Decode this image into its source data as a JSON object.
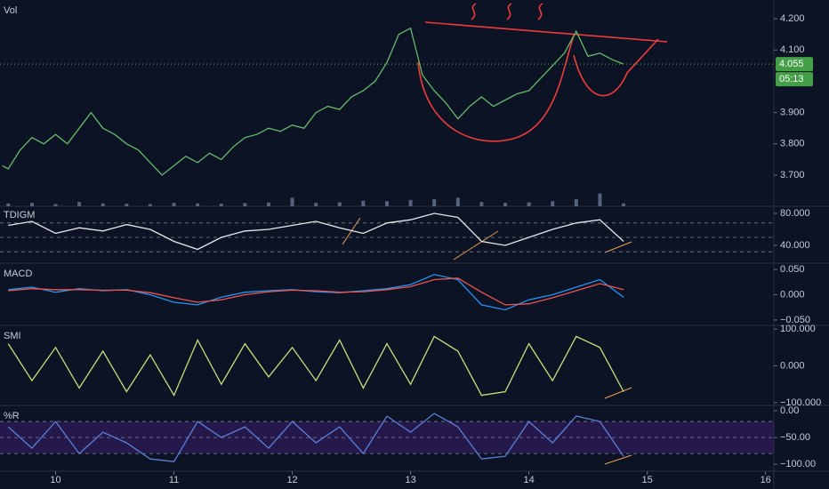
{
  "charts": [
    {
      "type": "line",
      "xlim": [
        9.53,
        16.07
      ],
      "ylim": [
        3.606,
        4.26
      ],
      "x": [
        9.55,
        9.6,
        9.7,
        9.8,
        9.9,
        10.0,
        10.1,
        10.2,
        10.3,
        10.4,
        10.5,
        10.6,
        10.7,
        10.8,
        10.9,
        11.0,
        11.1,
        11.2,
        11.3,
        11.4,
        11.5,
        11.6,
        11.7,
        11.8,
        11.9,
        12.0,
        12.1,
        12.2,
        12.3,
        12.4,
        12.5,
        12.6,
        12.7,
        12.8,
        12.9,
        13.0,
        13.1,
        13.2,
        13.3,
        13.4,
        13.5,
        13.6,
        13.7,
        13.8,
        13.9,
        14.0,
        14.1,
        14.2,
        14.3,
        14.4,
        14.5,
        14.6,
        14.7,
        14.8
      ],
      "series": [
        {
          "color": "#66bb6a",
          "values": [
            3.73,
            3.72,
            3.78,
            3.82,
            3.8,
            3.83,
            3.8,
            3.85,
            3.9,
            3.85,
            3.83,
            3.8,
            3.78,
            3.74,
            3.7,
            3.73,
            3.76,
            3.74,
            3.77,
            3.75,
            3.79,
            3.82,
            3.83,
            3.85,
            3.84,
            3.86,
            3.85,
            3.9,
            3.92,
            3.91,
            3.95,
            3.97,
            4.0,
            4.06,
            4.15,
            4.17,
            4.02,
            3.97,
            3.93,
            3.88,
            3.92,
            3.95,
            3.92,
            3.94,
            3.96,
            3.97,
            4.01,
            4.05,
            4.09,
            4.16,
            4.08,
            4.09,
            4.07,
            4.055
          ]
        }
      ],
      "yticks": [
        {
          "value": 4.2,
          "label": "4.200"
        },
        {
          "value": 4.1,
          "label": "4.100"
        },
        {
          "value": 3.9,
          "label": "3.900"
        },
        {
          "value": 3.8,
          "label": "3.800"
        },
        {
          "value": 3.7,
          "label": "3.700"
        }
      ],
      "price_label": {
        "value": 4.055,
        "label": "4.055"
      },
      "countdown": "05:13"
    },
    {
      "type": "bar",
      "title": "Vol",
      "xlim": [
        9.53,
        16.07
      ],
      "ylim": [
        0,
        100
      ],
      "color": "#56627e",
      "x": [
        9.6,
        9.8,
        10.0,
        10.2,
        10.4,
        10.6,
        10.8,
        11.0,
        11.2,
        11.4,
        11.6,
        11.8,
        12.0,
        12.2,
        12.4,
        12.6,
        12.8,
        13.0,
        13.2,
        13.4,
        13.6,
        13.8,
        14.0,
        14.2,
        14.4,
        14.6,
        14.8
      ],
      "values": [
        10,
        12,
        8,
        15,
        10,
        9,
        8,
        12,
        10,
        9,
        11,
        13,
        30,
        12,
        14,
        20,
        18,
        22,
        25,
        30,
        15,
        12,
        14,
        18,
        25,
        45,
        10
      ]
    },
    {
      "type": "line",
      "title": "TDIGM",
      "xlim": [
        9.53,
        16.07
      ],
      "ylim": [
        18.9,
        88.9
      ],
      "x": [
        9.6,
        9.8,
        10.0,
        10.2,
        10.4,
        10.6,
        10.8,
        11.0,
        11.2,
        11.4,
        11.6,
        11.8,
        12.0,
        12.2,
        12.4,
        12.6,
        12.8,
        13.0,
        13.2,
        13.4,
        13.6,
        13.8,
        14.0,
        14.2,
        14.4,
        14.6,
        14.8
      ],
      "series": [
        {
          "color": "#e8e8e8",
          "values": [
            65,
            70,
            55,
            62,
            58,
            66,
            60,
            45,
            35,
            50,
            58,
            60,
            65,
            70,
            62,
            55,
            68,
            72,
            80,
            75,
            45,
            40,
            50,
            60,
            68,
            72,
            45
          ]
        }
      ],
      "levels": [
        68,
        50,
        32
      ],
      "yticks": [
        {
          "value": 80,
          "label": "80.000"
        },
        {
          "value": 40,
          "label": "40.000"
        }
      ]
    },
    {
      "type": "line",
      "title": "MACD",
      "xlim": [
        9.53,
        16.07
      ],
      "ylim": [
        -0.059,
        0.059
      ],
      "x": [
        9.6,
        9.8,
        10.0,
        10.2,
        10.4,
        10.6,
        10.8,
        11.0,
        11.2,
        11.4,
        11.6,
        11.8,
        12.0,
        12.2,
        12.4,
        12.6,
        12.8,
        13.0,
        13.2,
        13.4,
        13.6,
        13.8,
        14.0,
        14.2,
        14.4,
        14.6,
        14.8
      ],
      "series": [
        {
          "color": "#2196f3",
          "values": [
            0.01,
            0.015,
            0.005,
            0.012,
            0.008,
            0.01,
            0.0,
            -0.015,
            -0.02,
            -0.005,
            0.005,
            0.008,
            0.01,
            0.006,
            0.004,
            0.008,
            0.012,
            0.02,
            0.04,
            0.03,
            -0.02,
            -0.03,
            -0.01,
            0.0,
            0.015,
            0.03,
            -0.005
          ]
        },
        {
          "color": "#ef5350",
          "values": [
            0.008,
            0.012,
            0.01,
            0.01,
            0.009,
            0.009,
            0.004,
            -0.006,
            -0.015,
            -0.01,
            0.0,
            0.006,
            0.009,
            0.008,
            0.005,
            0.006,
            0.01,
            0.016,
            0.03,
            0.033,
            0.005,
            -0.02,
            -0.018,
            -0.006,
            0.008,
            0.022,
            0.01
          ]
        }
      ],
      "yticks": [
        {
          "value": 0.05,
          "label": "0.050"
        },
        {
          "value": 0,
          "label": "0.000"
        },
        {
          "value": -0.05,
          "label": "−0.050"
        }
      ]
    },
    {
      "type": "line",
      "title": "SMI",
      "xlim": [
        9.53,
        16.07
      ],
      "ylim": [
        -105,
        105
      ],
      "x": [
        9.6,
        9.8,
        10.0,
        10.2,
        10.4,
        10.6,
        10.8,
        11.0,
        11.2,
        11.4,
        11.6,
        11.8,
        12.0,
        12.2,
        12.4,
        12.6,
        12.8,
        13.0,
        13.2,
        13.4,
        13.6,
        13.8,
        14.0,
        14.2,
        14.4,
        14.6,
        14.8
      ],
      "series": [
        {
          "color": "#c5e17a",
          "values": [
            60,
            -40,
            50,
            -60,
            40,
            -70,
            30,
            -80,
            70,
            -50,
            60,
            -30,
            50,
            -40,
            70,
            -60,
            60,
            -50,
            80,
            40,
            -80,
            -70,
            60,
            -40,
            80,
            50,
            -70
          ]
        }
      ],
      "yticks": [
        {
          "value": 100,
          "label": "100.000"
        },
        {
          "value": 0,
          "label": "0.000"
        },
        {
          "value": -100,
          "label": "−100.000"
        }
      ]
    },
    {
      "type": "line",
      "title": "%R",
      "xlim": [
        9.53,
        16.07
      ],
      "ylim": [
        -113,
        6.7
      ],
      "x": [
        9.6,
        9.8,
        10.0,
        10.2,
        10.4,
        10.6,
        10.8,
        11.0,
        11.2,
        11.4,
        11.6,
        11.8,
        12.0,
        12.2,
        12.4,
        12.6,
        12.8,
        13.0,
        13.2,
        13.4,
        13.6,
        13.8,
        14.0,
        14.2,
        14.4,
        14.6,
        14.8
      ],
      "series": [
        {
          "color": "#5c7fd6",
          "values": [
            -30,
            -70,
            -20,
            -80,
            -40,
            -60,
            -90,
            -95,
            -20,
            -50,
            -30,
            -70,
            -20,
            -60,
            -30,
            -80,
            -10,
            -40,
            -5,
            -30,
            -90,
            -85,
            -20,
            -60,
            -10,
            -20,
            -85
          ]
        }
      ],
      "band": [
        -20,
        -80
      ],
      "levels": [
        -20,
        -50,
        -80
      ],
      "yticks": [
        {
          "value": 0,
          "label": "0.00"
        },
        {
          "value": -50,
          "label": "−50.00"
        },
        {
          "value": -100,
          "label": "−100.00"
        }
      ],
      "xticks": [
        10,
        11,
        12,
        13,
        14,
        15,
        16
      ]
    }
  ]
}
